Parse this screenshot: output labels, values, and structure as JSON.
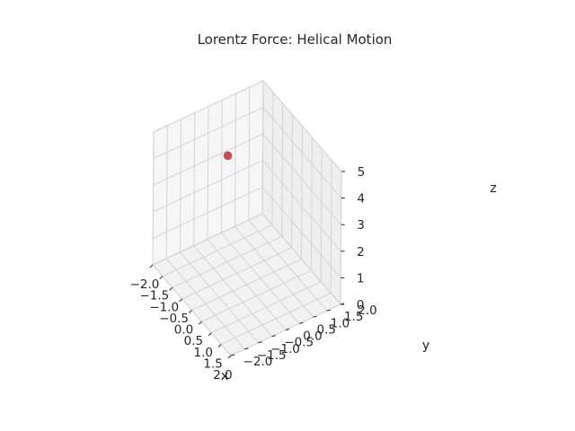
{
  "chart_data": {
    "type": "scatter",
    "title": "Lorentz Force: Helical Motion",
    "xlabel": "x",
    "ylabel": "y",
    "zlabel": "z",
    "xlim": [
      -2.0,
      2.0
    ],
    "ylim": [
      -2.0,
      2.0
    ],
    "zlim": [
      0,
      5
    ],
    "x_ticks": [
      "−2.0",
      "−1.5",
      "−1.0",
      "−0.5",
      "0.0",
      "0.5",
      "1.0",
      "1.5",
      "2.0"
    ],
    "y_ticks": [
      "−2.0",
      "−1.5",
      "−1.0",
      "−0.5",
      "0.0",
      "0.5",
      "1.0",
      "1.5",
      "2.0"
    ],
    "z_ticks": [
      "0",
      "1",
      "2",
      "3",
      "4",
      "5"
    ],
    "grid": true,
    "points": [
      {
        "x": -1.0,
        "y": 0.0,
        "z": 4.0,
        "color": "#c44e52"
      }
    ]
  }
}
